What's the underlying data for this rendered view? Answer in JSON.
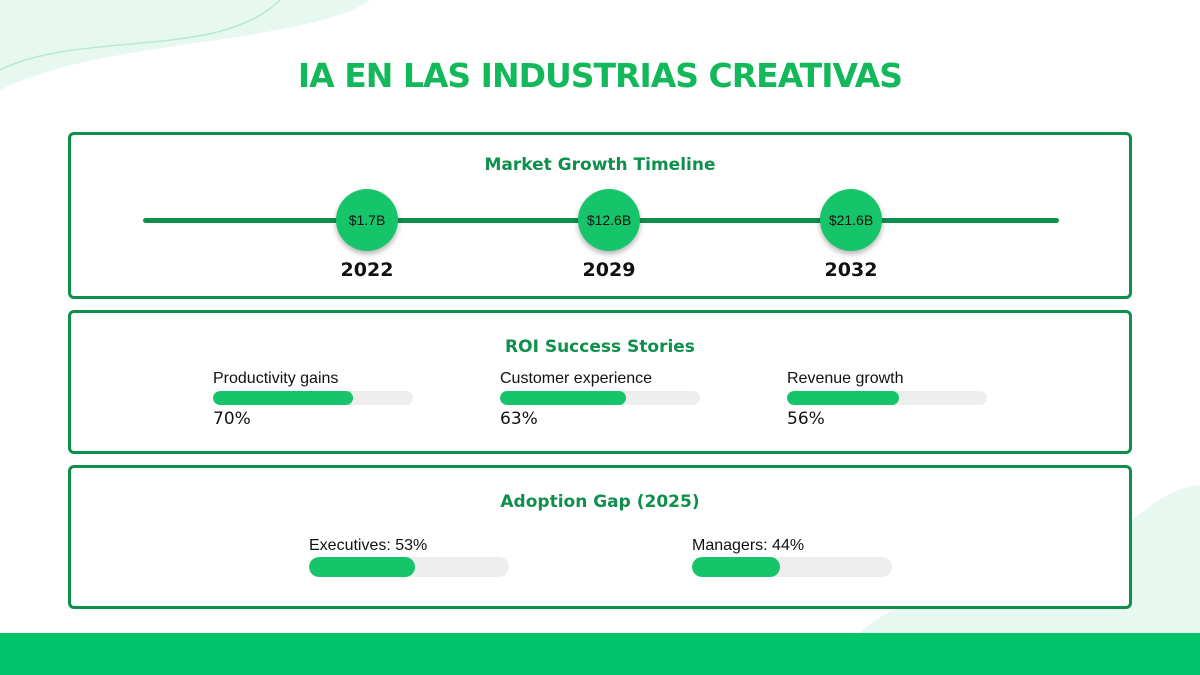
{
  "title": "IA EN LAS INDUSTRIAS CREATIVAS",
  "timeline": {
    "title": "Market Growth Timeline",
    "points": [
      {
        "label": "$1.7B",
        "year": "2022"
      },
      {
        "label": "$12.6B",
        "year": "2029"
      },
      {
        "label": "$21.6B",
        "year": "2032"
      }
    ]
  },
  "roi": {
    "title": "ROI Success Stories",
    "range": [
      0,
      100
    ],
    "categories": [
      "Productivity gains",
      "Customer experience",
      "Revenue growth"
    ],
    "values": [
      70,
      63,
      56
    ],
    "value_labels": [
      "70%",
      "63%",
      "56%"
    ]
  },
  "adoption": {
    "title": "Adoption Gap (2025)",
    "range": [
      0,
      100
    ],
    "categories": [
      "Executives: 53%",
      "Managers: 44%"
    ],
    "values": [
      53,
      44
    ]
  }
}
